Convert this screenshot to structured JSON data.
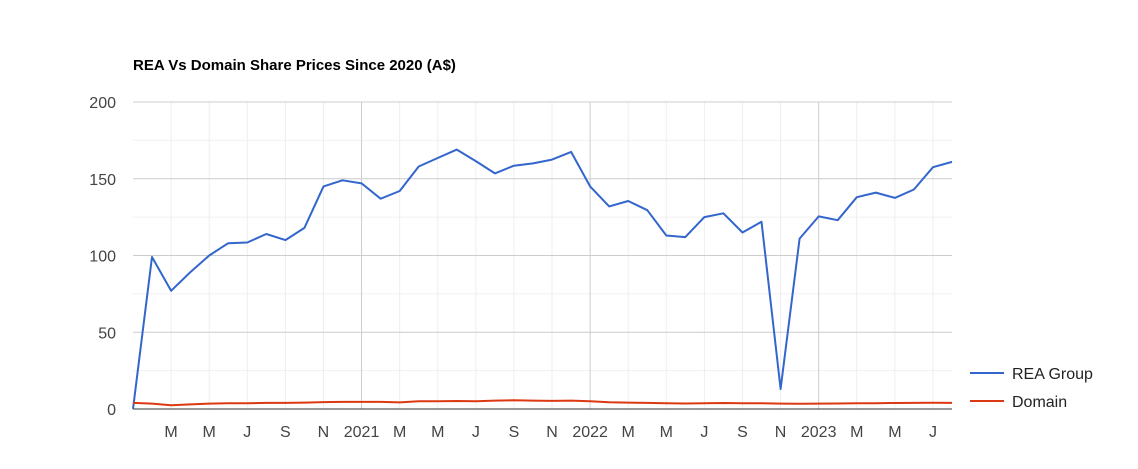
{
  "chart_data": {
    "type": "line",
    "title": "REA Vs Domain Share Prices Since 2020 (A$)",
    "xlabel": "",
    "ylabel": "",
    "ylim": [
      0,
      200
    ],
    "yticks": [
      0,
      50,
      100,
      150,
      200
    ],
    "x": [
      "2020-01",
      "2020-02",
      "2020-03",
      "2020-04",
      "2020-05",
      "2020-06",
      "2020-07",
      "2020-08",
      "2020-09",
      "2020-10",
      "2020-11",
      "2020-12",
      "2021-01",
      "2021-02",
      "2021-03",
      "2021-04",
      "2021-05",
      "2021-06",
      "2021-07",
      "2021-08",
      "2021-09",
      "2021-10",
      "2021-11",
      "2021-12",
      "2022-01",
      "2022-02",
      "2022-03",
      "2022-04",
      "2022-05",
      "2022-06",
      "2022-07",
      "2022-08",
      "2022-09",
      "2022-10",
      "2022-11",
      "2022-12",
      "2023-01",
      "2023-02",
      "2023-03",
      "2023-04",
      "2023-05",
      "2023-06",
      "2023-07",
      "2023-08"
    ],
    "xticks": [
      {
        "x": "2020-03",
        "label": "M"
      },
      {
        "x": "2020-05",
        "label": "M"
      },
      {
        "x": "2020-07",
        "label": "J"
      },
      {
        "x": "2020-09",
        "label": "S"
      },
      {
        "x": "2020-11",
        "label": "N"
      },
      {
        "x": "2021-01",
        "label": "2021"
      },
      {
        "x": "2021-03",
        "label": "M"
      },
      {
        "x": "2021-05",
        "label": "M"
      },
      {
        "x": "2021-07",
        "label": "J"
      },
      {
        "x": "2021-09",
        "label": "S"
      },
      {
        "x": "2021-11",
        "label": "N"
      },
      {
        "x": "2022-01",
        "label": "2022"
      },
      {
        "x": "2022-03",
        "label": "M"
      },
      {
        "x": "2022-05",
        "label": "M"
      },
      {
        "x": "2022-07",
        "label": "J"
      },
      {
        "x": "2022-09",
        "label": "S"
      },
      {
        "x": "2022-11",
        "label": "N"
      },
      {
        "x": "2023-01",
        "label": "2023"
      },
      {
        "x": "2023-03",
        "label": "M"
      },
      {
        "x": "2023-05",
        "label": "M"
      },
      {
        "x": "2023-07",
        "label": "J"
      }
    ],
    "series": [
      {
        "name": "REA Group",
        "color": "#3366cc",
        "values": [
          0,
          99,
          77,
          89,
          100,
          108,
          108.5,
          114,
          110,
          118,
          145,
          149,
          147,
          137,
          142,
          158,
          163.5,
          169,
          161.5,
          153.5,
          158.5,
          160,
          162.5,
          167.5,
          145,
          132,
          135.5,
          129.5,
          113,
          112,
          125,
          127.5,
          115,
          122,
          13,
          111,
          125.5,
          123,
          138,
          141,
          137.5,
          143,
          157.5,
          161
        ]
      },
      {
        "name": "Domain",
        "color": "#dc3912",
        "values": [
          4,
          3.5,
          2.5,
          3,
          3.5,
          3.8,
          3.8,
          4,
          4,
          4.2,
          4.5,
          4.6,
          4.6,
          4.6,
          4.3,
          5,
          5,
          5.2,
          5,
          5.5,
          5.7,
          5.5,
          5.3,
          5.5,
          5,
          4.4,
          4.2,
          4,
          3.8,
          3.6,
          3.8,
          3.9,
          3.7,
          3.8,
          3.5,
          3.4,
          3.5,
          3.6,
          3.7,
          3.8,
          3.9,
          4,
          4.1,
          4
        ]
      }
    ],
    "grid": true,
    "legend_position": "right"
  }
}
